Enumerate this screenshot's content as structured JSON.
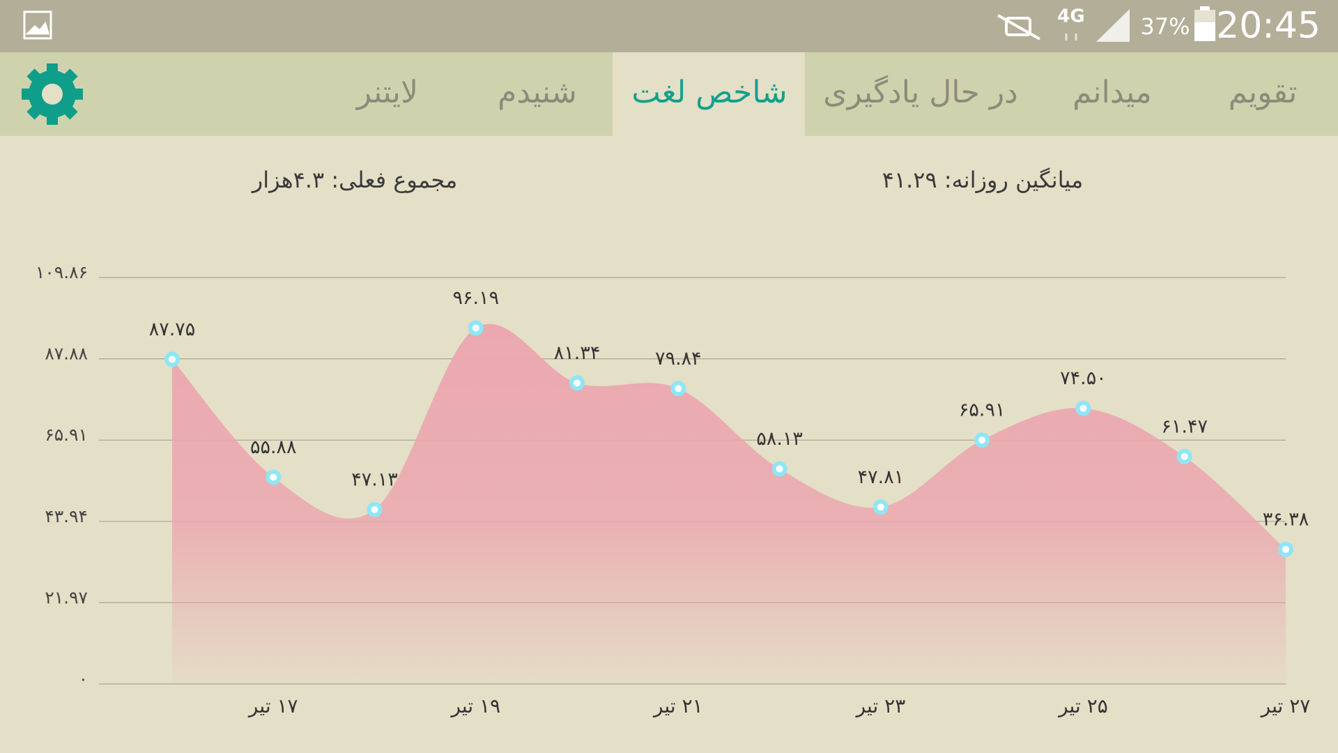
{
  "status_bar": {
    "network": "4G",
    "battery": "37%",
    "time": "20:45"
  },
  "tabs": [
    "تقویم",
    "میدانم",
    "در حال یادگیری",
    "شاخص لغت",
    "شنیدم",
    "لایتنر"
  ],
  "active_tab": 3,
  "summary": {
    "daily_average": "میانگین روزانه: ۴۱.۲۹",
    "current_total": "مجموع فعلی: ۴.۳هزار"
  },
  "chart_data": {
    "type": "area",
    "categories": [
      null,
      "۱۷ تیر",
      null,
      "۱۹ تیر",
      null,
      "۲۱ تیر",
      null,
      "۲۳ تیر",
      null,
      "۲۵ تیر",
      null,
      "۲۷ تیر"
    ],
    "values": [
      87.75,
      55.88,
      47.13,
      96.19,
      81.34,
      79.84,
      58.13,
      47.81,
      65.91,
      74.5,
      61.47,
      36.38
    ],
    "value_labels": [
      "۸۷.۷۵",
      "۵۵.۸۸",
      "۴۷.۱۳",
      "۹۶.۱۹",
      "۸۱.۳۴",
      "۷۹.۸۴",
      "۵۸.۱۳",
      "۴۷.۸۱",
      "۶۵.۹۱",
      "۷۴.۵۰",
      "۶۱.۴۷",
      "۳۶.۳۸"
    ],
    "color": "#eba8b0",
    "marker_color": "#8fe6f5",
    "ylim": [
      0,
      109.86
    ],
    "yticks": [
      {
        "value": 0,
        "label": "۰"
      },
      {
        "value": 21.97,
        "label": "۲۱.۹۷"
      },
      {
        "value": 43.94,
        "label": "۴۳.۹۴"
      },
      {
        "value": 65.91,
        "label": "۶۵.۹۱"
      },
      {
        "value": 87.88,
        "label": "۸۷.۸۸"
      },
      {
        "value": 109.86,
        "label": "۱۰۹.۸۶"
      }
    ],
    "grid": true
  }
}
